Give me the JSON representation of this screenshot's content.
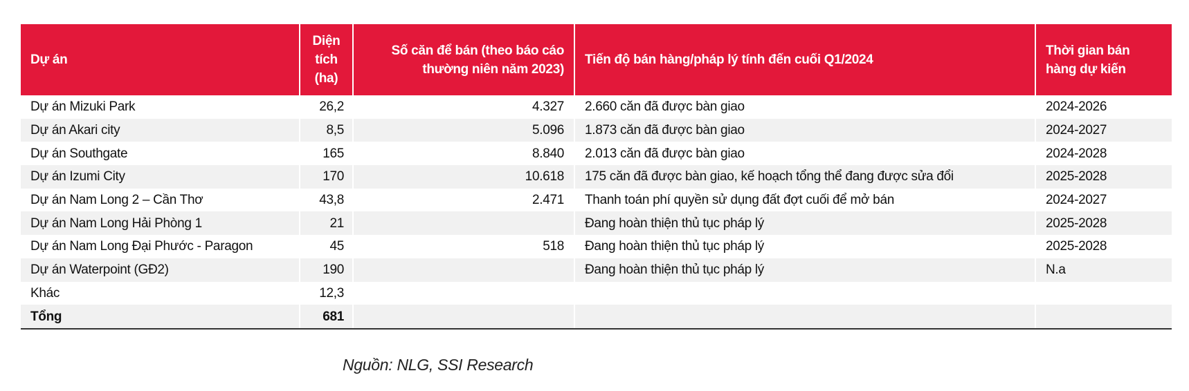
{
  "table": {
    "header": [
      "Dự án",
      "Diện tích (ha)",
      "Số căn để bán (theo báo cáo thường niên năm 2023)",
      "Tiến độ bán hàng/pháp lý tính đến cuối Q1/2024",
      "Thời gian bán hàng dự kiến"
    ],
    "rows": [
      [
        "Dự án Mizuki Park",
        "26,2",
        "4.327",
        "2.660 căn đã được bàn giao",
        "2024-2026"
      ],
      [
        "Dự án Akari city",
        "8,5",
        "5.096",
        "1.873 căn đã được bàn giao",
        "2024-2027"
      ],
      [
        "Dự án Southgate",
        "165",
        "8.840",
        "2.013 căn đã được bàn giao",
        "2024-2028"
      ],
      [
        "Dự án Izumi City",
        "170",
        "10.618",
        "175 căn đã được bàn giao, kế hoạch tổng thể đang được sửa đổi",
        "2025-2028"
      ],
      [
        "Dự án Nam Long 2 – Cần Thơ",
        "43,8",
        "2.471",
        "Thanh toán phí quyền sử dụng đất đợt cuối để mở bán",
        "2024-2027"
      ],
      [
        "Dự án Nam Long Hải Phòng 1",
        "21",
        null,
        "Đang hoàn thiện thủ tục pháp lý",
        "2025-2028"
      ],
      [
        "Dự án Nam Long Đại Phước - Paragon",
        "45",
        "518",
        "Đang hoàn thiện thủ tục pháp lý",
        "2025-2028"
      ],
      [
        "Dự án Waterpoint (GĐ2)",
        "190",
        null,
        "Đang hoàn thiện thủ tục pháp lý",
        "N.a"
      ],
      [
        "Khác",
        "12,3",
        null,
        null,
        null
      ],
      [
        "Tổng",
        "681",
        null,
        null,
        null
      ]
    ]
  },
  "source": "Nguồn: NLG, SSI Research"
}
